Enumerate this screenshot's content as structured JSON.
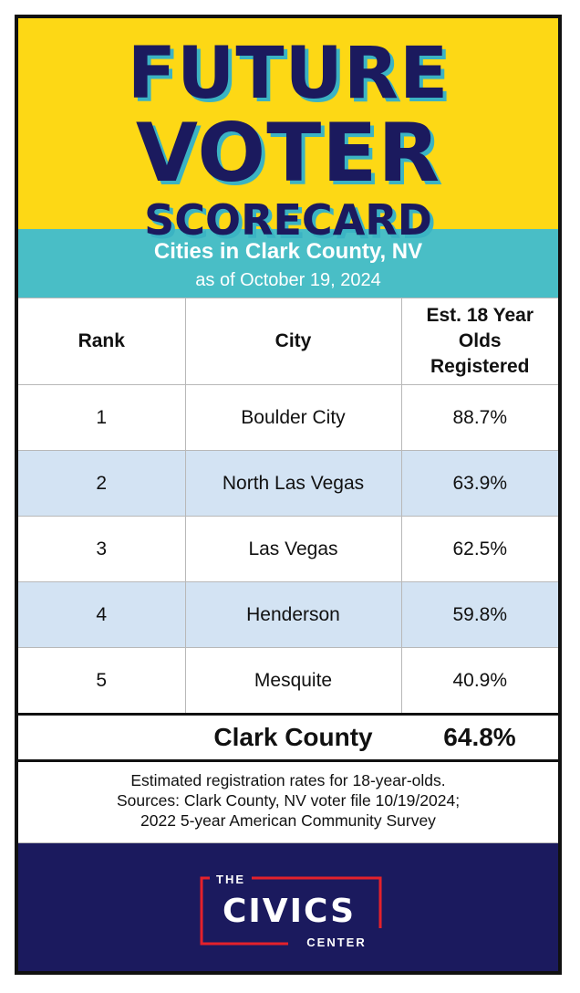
{
  "title": {
    "line1": "FUTURE",
    "line2": "VOTER",
    "line3": "SCORECARD"
  },
  "subheader": {
    "title": "Cities in Clark County, NV",
    "date": "as of October 19, 2024"
  },
  "table": {
    "headers": {
      "rank": "Rank",
      "city": "City",
      "registered": "Est. 18 Year Olds Registered"
    },
    "rows": [
      {
        "rank": "1",
        "city": "Boulder City",
        "registered": "88.7%"
      },
      {
        "rank": "2",
        "city": "North Las Vegas",
        "registered": "63.9%"
      },
      {
        "rank": "3",
        "city": "Las Vegas",
        "registered": "62.5%"
      },
      {
        "rank": "4",
        "city": "Henderson",
        "registered": "59.8%"
      },
      {
        "rank": "5",
        "city": "Mesquite",
        "registered": "40.9%"
      }
    ]
  },
  "total": {
    "label": "Clark County",
    "value": "64.8%"
  },
  "notes": {
    "line1": "Estimated registration rates for 18-year-olds.",
    "line2": "Sources: Clark County, NV voter file 10/19/2024;",
    "line3": "2022 5-year American Community Survey"
  },
  "logo": {
    "top": "THE",
    "main": "CIVICS",
    "bottom": "CENTER"
  },
  "colors": {
    "header_yellow": "#FDD815",
    "title_navy": "#1B1A5E",
    "title_shadow_teal": "#3BB3C3",
    "subheader_teal": "#49BEC6",
    "alt_row_blue": "#D3E3F3",
    "footer_navy": "#1B1A5E",
    "logo_red": "#E4212B"
  }
}
